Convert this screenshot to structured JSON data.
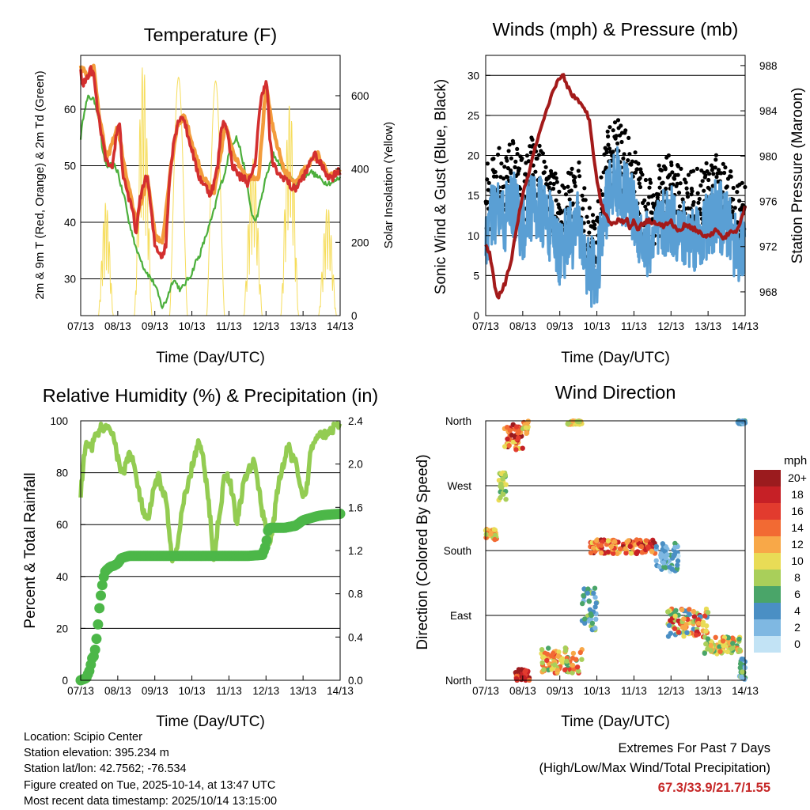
{
  "colors": {
    "temp_red": "#d32f2f",
    "temp_orange": "#f39c3c",
    "dewpoint_green": "#4caf3c",
    "solar_yellow": "#f6dd5c",
    "wind_blue": "#5a9fd4",
    "gust_black": "#000000",
    "pressure_maroon": "#a31a1a",
    "rh_lightgreen": "#93cc52",
    "precip_green": "#4cb748"
  },
  "x_ticks": [
    "07/13",
    "08/13",
    "09/13",
    "10/13",
    "11/13",
    "12/13",
    "13/13",
    "14/13"
  ],
  "x_label": "Time (Day/UTC)",
  "chart_data": [
    {
      "id": "temperature",
      "type": "line",
      "title": "Temperature (F)",
      "xlabel": "Time (Day/UTC)",
      "ylabel": "2m & 9m T (Red, Orange) & 2m Td (Green)",
      "ylabel_right": "Solar Insolation (Yellow)",
      "ylim": [
        23.5,
        69.5
      ],
      "yticks": [
        30,
        40,
        50,
        60
      ],
      "ylim_right": [
        0,
        710
      ],
      "yticks_right": [
        0,
        200,
        400,
        600
      ],
      "series": [
        {
          "name": "2m T",
          "color": "#d32f2f",
          "x": [
            0,
            0.05,
            0.12,
            0.2,
            0.28,
            0.35,
            0.45,
            0.55,
            0.65,
            0.75,
            0.85,
            0.95,
            1.05,
            1.1,
            1.15,
            1.25,
            1.3,
            1.4,
            1.5,
            1.6,
            1.7,
            1.8,
            1.9,
            2.0,
            2.1,
            2.2,
            2.3,
            2.4,
            2.5,
            2.6,
            2.7,
            2.8,
            2.9,
            3.0,
            3.1,
            3.2,
            3.3,
            3.4,
            3.5,
            3.6,
            3.7,
            3.8,
            3.9,
            4.0,
            4.1,
            4.2,
            4.3,
            4.4,
            4.5,
            4.6,
            4.7,
            4.8,
            4.9,
            5.0,
            5.05,
            5.1,
            5.15,
            5.2,
            5.3,
            5.4,
            5.5,
            5.6,
            5.7,
            5.8,
            5.9,
            6.0,
            6.1,
            6.2,
            6.3,
            6.4,
            6.5,
            6.6,
            6.7,
            6.8,
            6.9,
            7.0
          ],
          "y": [
            67,
            64,
            65,
            66,
            67,
            66,
            60,
            56,
            52,
            50,
            49,
            55,
            58,
            52,
            48,
            46,
            44,
            42,
            38,
            44,
            47,
            48,
            42,
            36,
            35,
            34,
            36,
            48,
            54,
            57,
            59,
            58,
            55,
            53,
            50,
            48,
            47,
            46,
            45,
            47,
            50,
            57,
            58,
            54,
            50,
            49,
            48,
            48,
            47,
            48,
            50,
            58,
            63,
            65,
            62,
            55,
            52,
            50,
            49,
            48,
            48,
            47,
            46,
            46,
            47,
            48,
            49,
            51,
            52,
            51,
            50,
            49,
            48,
            48,
            49,
            49
          ]
        },
        {
          "name": "9m T",
          "color": "#f39c3c",
          "x": [
            0,
            0.2,
            0.35,
            0.5,
            0.7,
            1.0,
            1.2,
            1.5,
            1.8,
            2.0,
            2.2,
            2.4,
            2.6,
            2.8,
            3.0,
            3.3,
            3.6,
            3.9,
            4.2,
            4.5,
            4.8,
            5.0,
            5.2,
            5.5,
            5.8,
            6.1,
            6.4,
            6.7,
            7.0
          ],
          "y": [
            67.5,
            66,
            67.5,
            59,
            51,
            57,
            49,
            40,
            48,
            38,
            36,
            48,
            57,
            59,
            54,
            48,
            45,
            57,
            51,
            48,
            48,
            64,
            56,
            49,
            47,
            50,
            52,
            48,
            49
          ]
        },
        {
          "name": "2m Td",
          "color": "#4caf3c",
          "x": [
            0,
            0.1,
            0.2,
            0.3,
            0.4,
            0.5,
            0.6,
            0.7,
            0.8,
            0.9,
            1.0,
            1.1,
            1.2,
            1.3,
            1.4,
            1.5,
            1.6,
            1.7,
            1.8,
            1.9,
            2.0,
            2.1,
            2.2,
            2.3,
            2.4,
            2.5,
            2.6,
            2.7,
            2.8,
            2.9,
            3.0,
            3.1,
            3.2,
            3.3,
            3.4,
            3.5,
            3.6,
            3.7,
            3.8,
            3.9,
            4.0,
            4.1,
            4.2,
            4.3,
            4.4,
            4.5,
            4.6,
            4.7,
            4.8,
            4.9,
            5.0,
            5.2,
            5.4,
            5.6,
            5.8,
            6.0,
            6.2,
            6.4,
            6.6,
            6.8,
            7.0
          ],
          "y": [
            55,
            60,
            62,
            62,
            61,
            58,
            52,
            50,
            50,
            50,
            49,
            46,
            44,
            40,
            38,
            35,
            34,
            32,
            31,
            30,
            29,
            27,
            25,
            26,
            28,
            30,
            29,
            28,
            29,
            30,
            31,
            33,
            34,
            36,
            38,
            40,
            42,
            45,
            47,
            49,
            52,
            54,
            55,
            53,
            50,
            46,
            42,
            40,
            42,
            45,
            48,
            52,
            50,
            48,
            47,
            48,
            49,
            48,
            47,
            47,
            48
          ]
        }
      ],
      "solar": {
        "name": "Solar Insolation",
        "color": "#f6dd5c",
        "days": [
          {
            "start": 0.48,
            "end": 0.88,
            "peak": 310,
            "jagged": true
          },
          {
            "start": 1.45,
            "end": 1.92,
            "peak": 690,
            "jagged": true
          },
          {
            "start": 2.4,
            "end": 2.88,
            "peak": 650,
            "jagged": false
          },
          {
            "start": 3.4,
            "end": 3.88,
            "peak": 640,
            "jagged": false
          },
          {
            "start": 4.4,
            "end": 4.9,
            "peak": 430,
            "jagged": true
          },
          {
            "start": 5.4,
            "end": 5.88,
            "peak": 580,
            "jagged": true
          },
          {
            "start": 6.42,
            "end": 6.9,
            "peak": 300,
            "jagged": true
          }
        ]
      }
    },
    {
      "id": "winds",
      "type": "scatter",
      "title": "Winds (mph) & Pressure (mb)",
      "xlabel": "Time (Day/UTC)",
      "ylabel": "Sonic Wind & Gust (Blue, Black)",
      "ylabel_right": "Station Pressure (Maroon)",
      "ylim": [
        0,
        32.5
      ],
      "yticks": [
        0,
        5,
        10,
        15,
        20,
        25,
        30
      ],
      "ylim_right": [
        965.9,
        988.9
      ],
      "yticks_right": [
        968,
        972,
        976,
        980,
        984,
        988
      ],
      "wind_mean_envelope": {
        "x": [
          0,
          0.25,
          0.5,
          0.75,
          1.0,
          1.25,
          1.5,
          1.75,
          2.0,
          2.25,
          2.5,
          2.75,
          3.0,
          3.25,
          3.5,
          3.75,
          4.0,
          4.25,
          4.5,
          4.75,
          5.0,
          5.25,
          5.5,
          5.75,
          6.0,
          6.25,
          6.5,
          6.75,
          7.0
        ],
        "y": [
          10,
          13,
          12,
          14,
          11,
          14,
          13,
          11,
          8,
          10,
          11,
          6,
          5,
          14,
          17,
          15,
          13,
          9,
          9,
          11,
          12,
          10,
          10,
          10,
          11,
          13,
          11,
          9,
          8
        ]
      },
      "pressure": {
        "name": "Station Pressure",
        "color": "#a31a1a",
        "x": [
          0,
          0.1,
          0.2,
          0.3,
          0.4,
          0.55,
          0.7,
          0.85,
          1.0,
          1.2,
          1.4,
          1.6,
          1.8,
          2.0,
          2.1,
          2.2,
          2.3,
          2.4,
          2.5,
          2.6,
          2.7,
          2.8,
          2.9,
          3.0,
          3.1,
          3.2,
          3.3,
          3.4,
          3.5,
          3.6,
          3.7,
          3.8,
          3.9,
          4.0,
          4.1,
          4.2,
          4.4,
          4.6,
          4.8,
          5.0,
          5.2,
          5.4,
          5.6,
          5.8,
          6.0,
          6.2,
          6.4,
          6.6,
          6.8,
          7.0
        ],
        "y": [
          972,
          971.5,
          969.5,
          967.5,
          967.8,
          969,
          971,
          974,
          976.5,
          979,
          981.5,
          983.5,
          985.5,
          987,
          987.1,
          986.2,
          985.6,
          985.2,
          984.8,
          984.4,
          984,
          983.2,
          980.5,
          978,
          976,
          975,
          974.5,
          974,
          974,
          974.5,
          974.2,
          974.5,
          973.5,
          974.4,
          973.5,
          974,
          974.3,
          974.1,
          973.8,
          974.2,
          973.3,
          974,
          973.6,
          973.2,
          972.8,
          973.5,
          972.7,
          973.2,
          973.5,
          975.5
        ]
      }
    },
    {
      "id": "humidity",
      "type": "line",
      "title": "Relative Humidity (%) & Precipitation (in)",
      "xlabel": "Time (Day/UTC)",
      "ylabel": "Percent & Total Rainfall",
      "ylim": [
        0,
        100
      ],
      "yticks": [
        0,
        20,
        40,
        60,
        80,
        100
      ],
      "ylim_right": [
        0,
        2.4
      ],
      "yticks_right": [
        0.0,
        0.4,
        0.8,
        1.2,
        1.6,
        2.0,
        2.4
      ],
      "series": [
        {
          "name": "Relative Humidity",
          "color": "#93cc52",
          "x": [
            0,
            0.1,
            0.2,
            0.3,
            0.45,
            0.6,
            0.7,
            0.8,
            0.9,
            1.0,
            1.1,
            1.2,
            1.3,
            1.4,
            1.5,
            1.6,
            1.7,
            1.8,
            1.9,
            2.0,
            2.1,
            2.2,
            2.3,
            2.4,
            2.5,
            2.6,
            2.7,
            2.8,
            2.9,
            3.0,
            3.1,
            3.2,
            3.3,
            3.4,
            3.5,
            3.6,
            3.7,
            3.8,
            3.9,
            4.0,
            4.1,
            4.2,
            4.3,
            4.4,
            4.5,
            4.6,
            4.7,
            4.8,
            4.9,
            5.0,
            5.1,
            5.2,
            5.3,
            5.4,
            5.5,
            5.6,
            5.7,
            5.8,
            5.9,
            6.0,
            6.1,
            6.2,
            6.4,
            6.6,
            6.8,
            7.0
          ],
          "y": [
            72,
            88,
            92,
            90,
            95,
            98,
            96,
            97,
            94,
            85,
            80,
            82,
            88,
            85,
            78,
            70,
            65,
            60,
            68,
            75,
            78,
            74,
            70,
            55,
            45,
            50,
            62,
            70,
            75,
            82,
            88,
            92,
            85,
            75,
            62,
            45,
            60,
            70,
            80,
            78,
            72,
            60,
            68,
            76,
            80,
            82,
            85,
            74,
            65,
            60,
            52,
            60,
            72,
            80,
            85,
            90,
            86,
            84,
            75,
            70,
            74,
            88,
            96,
            95,
            97,
            99
          ]
        },
        {
          "name": "Total Rainfall",
          "color": "#4cb748",
          "axis": "right",
          "x": [
            0,
            0.15,
            0.25,
            0.3,
            0.35,
            0.4,
            0.45,
            0.5,
            0.55,
            0.6,
            0.65,
            0.7,
            0.8,
            0.9,
            1.0,
            1.1,
            1.3,
            2.0,
            3.0,
            4.0,
            4.5,
            4.9,
            5.0,
            5.05,
            5.1,
            5.2,
            5.5,
            5.8,
            6.0,
            6.2,
            6.4,
            6.6,
            7.0
          ],
          "y": [
            0,
            0.02,
            0.1,
            0.2,
            0.22,
            0.3,
            0.45,
            0.65,
            0.8,
            0.92,
            1.0,
            1.02,
            1.05,
            1.06,
            1.08,
            1.13,
            1.15,
            1.15,
            1.15,
            1.15,
            1.15,
            1.16,
            1.25,
            1.38,
            1.41,
            1.41,
            1.41,
            1.43,
            1.48,
            1.5,
            1.52,
            1.53,
            1.54
          ]
        }
      ]
    },
    {
      "id": "wind_direction",
      "type": "scatter",
      "title": "Wind Direction",
      "xlabel": "Time (Day/UTC)",
      "ylabel": "Direction (Colored By Speed)",
      "yticks": [
        "North",
        "East",
        "South",
        "West",
        "North"
      ],
      "colorbar_title": "mph",
      "colorbar": [
        {
          "label": "20+",
          "color": "#9b1b1e"
        },
        {
          "label": "18",
          "color": "#c62026"
        },
        {
          "label": "16",
          "color": "#e23b2e"
        },
        {
          "label": "14",
          "color": "#f26a33"
        },
        {
          "label": "12",
          "color": "#f8a848"
        },
        {
          "label": "10",
          "color": "#e9dc56"
        },
        {
          "label": "8",
          "color": "#a9cf5a"
        },
        {
          "label": "6",
          "color": "#4aa569"
        },
        {
          "label": "4",
          "color": "#4a8fc4"
        },
        {
          "label": "2",
          "color": "#7fb8e2"
        },
        {
          "label": "0",
          "color": "#c2e3f5"
        }
      ],
      "clusters": [
        {
          "x": [
            0.0,
            0.3
          ],
          "dir": [
            195,
            210
          ],
          "speed": [
            8,
            14
          ]
        },
        {
          "x": [
            0.35,
            0.55
          ],
          "dir": [
            250,
            290
          ],
          "speed": [
            6,
            10
          ]
        },
        {
          "x": [
            0.5,
            1.0
          ],
          "dir": [
            320,
            355
          ],
          "speed": [
            10,
            20
          ]
        },
        {
          "x": [
            1.0,
            1.15
          ],
          "dir": [
            340,
            360
          ],
          "speed": [
            8,
            14
          ]
        },
        {
          "x": [
            0.8,
            1.2
          ],
          "dir": [
            0,
            15
          ],
          "speed": [
            14,
            20
          ]
        },
        {
          "x": [
            1.4,
            2.6
          ],
          "dir": [
            10,
            45
          ],
          "speed": [
            6,
            16
          ]
        },
        {
          "x": [
            2.2,
            2.6
          ],
          "dir": [
            355,
            360
          ],
          "speed": [
            8,
            12
          ]
        },
        {
          "x": [
            2.6,
            3.0
          ],
          "dir": [
            70,
            130
          ],
          "speed": [
            2,
            8
          ]
        },
        {
          "x": [
            2.8,
            4.6
          ],
          "dir": [
            175,
            195
          ],
          "speed": [
            10,
            20
          ]
        },
        {
          "x": [
            4.6,
            5.2
          ],
          "dir": [
            150,
            190
          ],
          "speed": [
            0,
            6
          ]
        },
        {
          "x": [
            4.9,
            6.0
          ],
          "dir": [
            60,
            100
          ],
          "speed": [
            4,
            18
          ]
        },
        {
          "x": [
            5.9,
            6.9
          ],
          "dir": [
            35,
            60
          ],
          "speed": [
            6,
            14
          ]
        },
        {
          "x": [
            6.85,
            7.0
          ],
          "dir": [
            0,
            30
          ],
          "speed": [
            2,
            8
          ]
        },
        {
          "x": [
            6.8,
            7.0
          ],
          "dir": [
            355,
            360
          ],
          "speed": [
            2,
            6
          ]
        }
      ]
    }
  ],
  "info": {
    "location": "Location: Scipio Center",
    "elevation": "Station elevation: 395.234 m",
    "latlon": "Station lat/lon: 42.7562; -76.534",
    "created": "Figure created on Tue, 2025-10-14, at 13:47 UTC",
    "recent": "Most recent data timestamp: 2025/10/14 13:15:00"
  },
  "extremes": {
    "title": "Extremes For Past 7 Days",
    "subtitle": "(High/Low/Max Wind/Total Precipitation)",
    "values": "67.3/33.9/21.7/1.55"
  }
}
